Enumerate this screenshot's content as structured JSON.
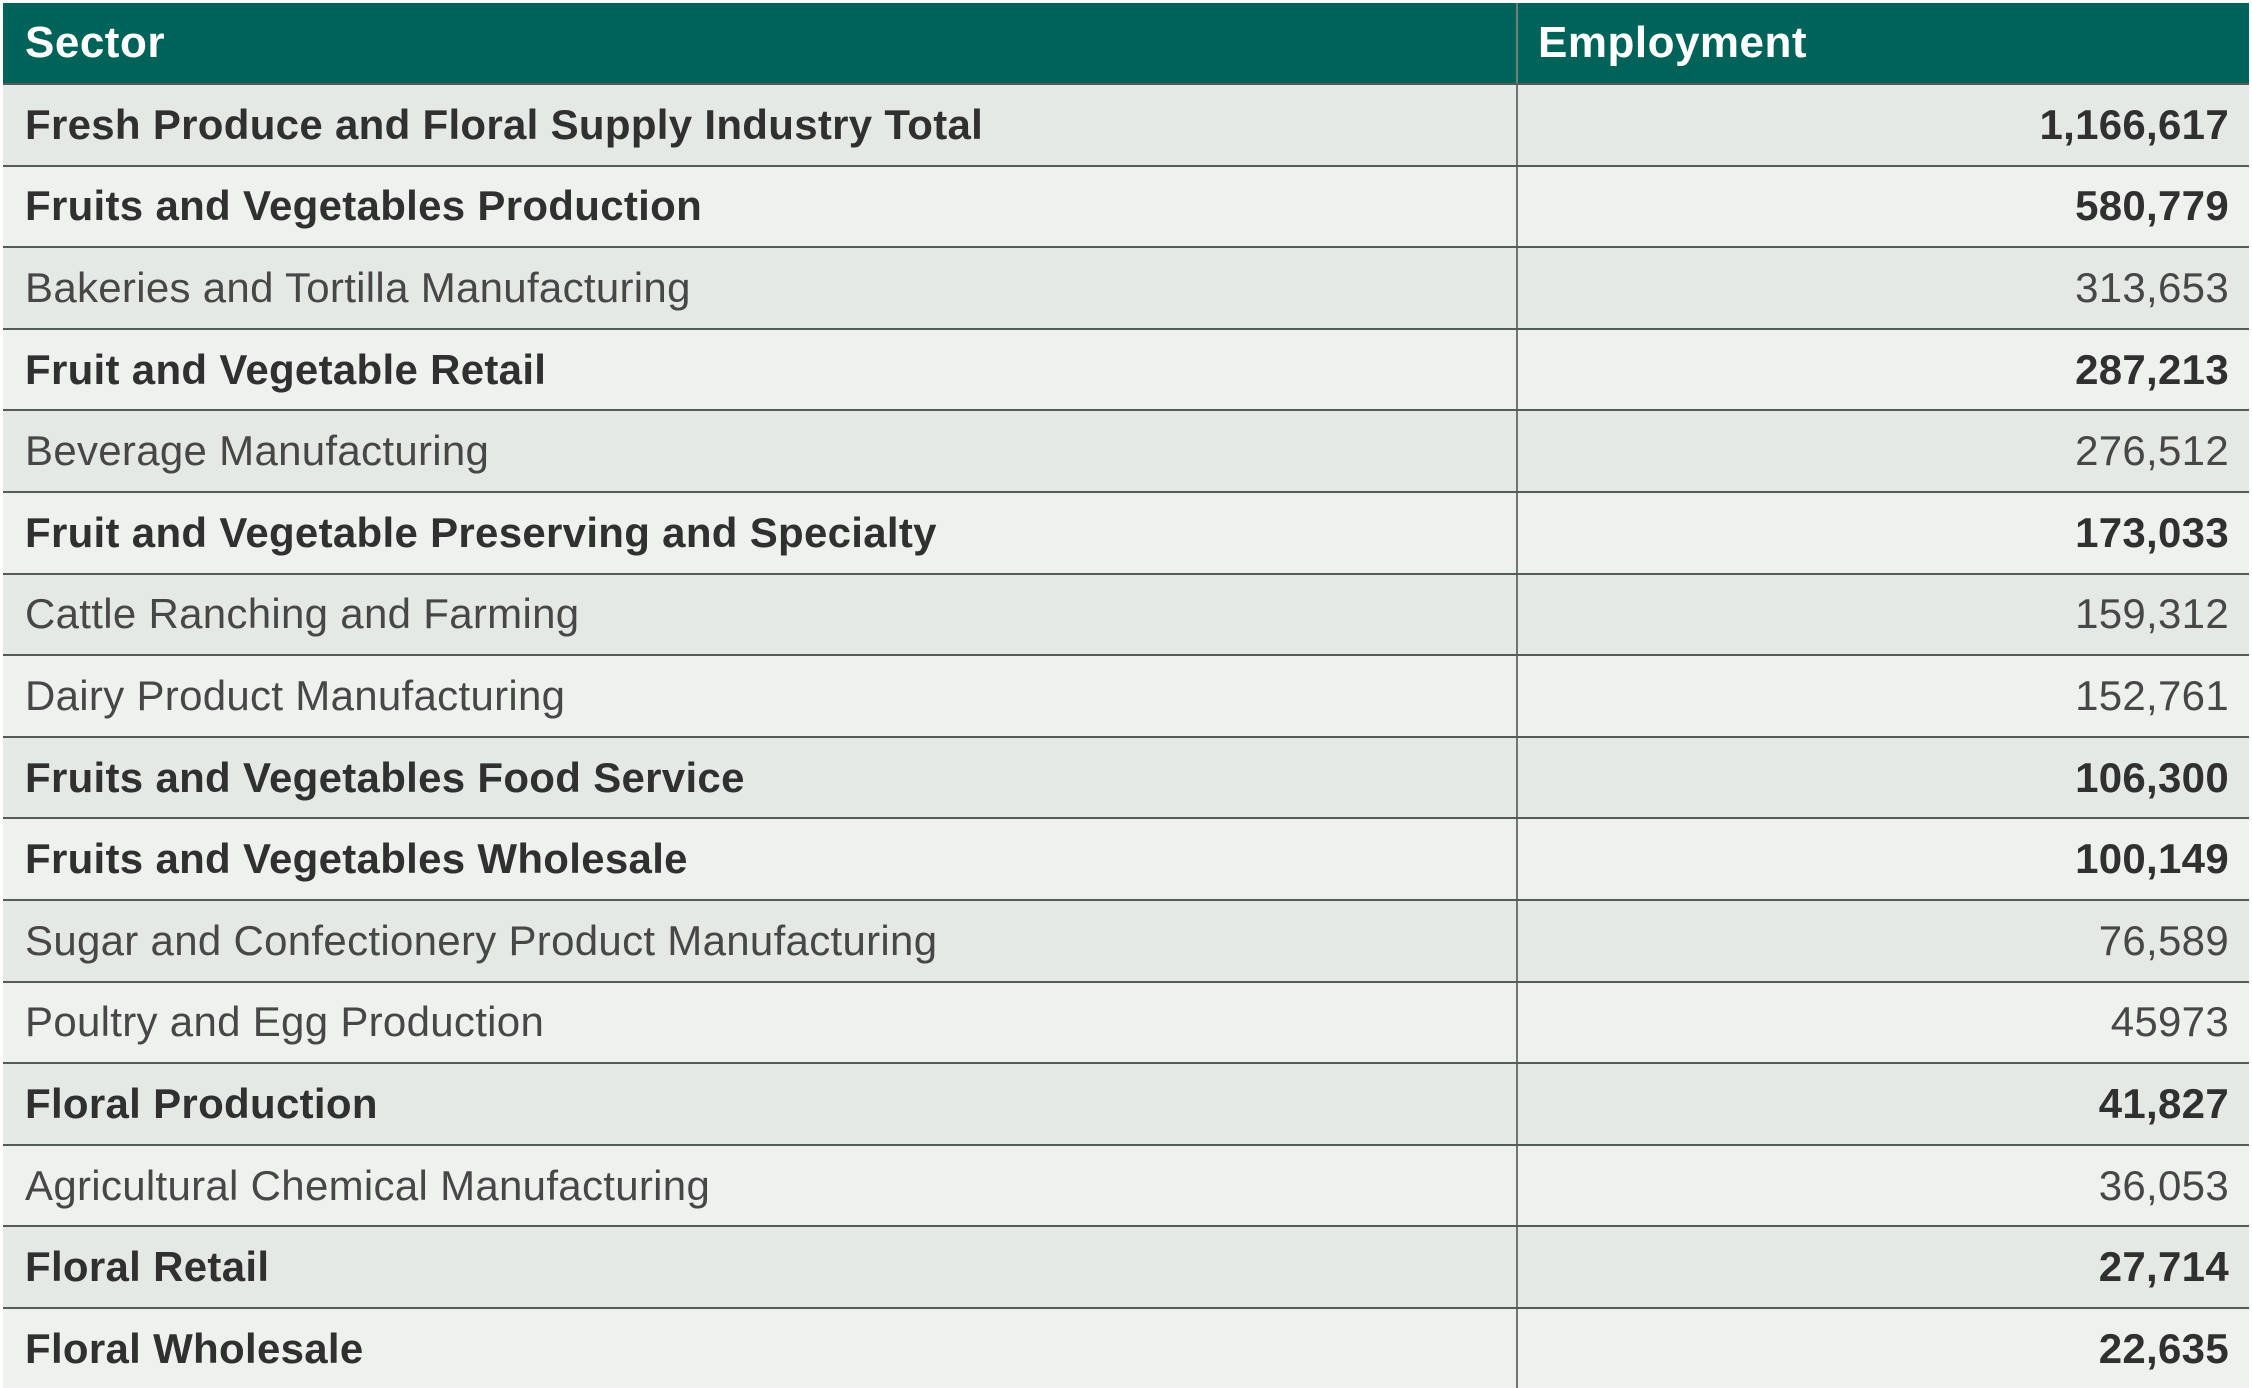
{
  "colors": {
    "header_bg": "#00635a",
    "header_text": "#ffffff",
    "row_odd_bg": "#e4e9e5",
    "row_even_bg": "#eef1ee",
    "h_border": "#545b58",
    "v_divider": "#6f7573",
    "text_regular": "#474747",
    "text_bold": "#303030"
  },
  "table": {
    "columns": [
      {
        "label": "Sector"
      },
      {
        "label": "Employment"
      }
    ],
    "rows": [
      {
        "sector": "Fresh Produce and Floral Supply Industry Total",
        "employment": "1,166,617",
        "bold": true
      },
      {
        "sector": "Fruits and Vegetables Production",
        "employment": "580,779",
        "bold": true
      },
      {
        "sector": "Bakeries and Tortilla Manufacturing",
        "employment": "313,653",
        "bold": false
      },
      {
        "sector": "Fruit and Vegetable Retail",
        "employment": "287,213",
        "bold": true
      },
      {
        "sector": "Beverage Manufacturing",
        "employment": "276,512",
        "bold": false
      },
      {
        "sector": "Fruit and Vegetable Preserving and Specialty",
        "employment": "173,033",
        "bold": true
      },
      {
        "sector": "Cattle Ranching and Farming",
        "employment": "159,312",
        "bold": false
      },
      {
        "sector": "Dairy Product Manufacturing",
        "employment": "152,761",
        "bold": false
      },
      {
        "sector": "Fruits and Vegetables Food Service",
        "employment": "106,300",
        "bold": true
      },
      {
        "sector": "Fruits and Vegetables Wholesale",
        "employment": "100,149",
        "bold": true
      },
      {
        "sector": "Sugar and Confectionery Product Manufacturing",
        "employment": "76,589",
        "bold": false
      },
      {
        "sector": "Poultry and Egg Production",
        "employment": "45973",
        "bold": false
      },
      {
        "sector": "Floral Production",
        "employment": "41,827",
        "bold": true
      },
      {
        "sector": "Agricultural Chemical Manufacturing",
        "employment": "36,053",
        "bold": false
      },
      {
        "sector": "Floral Retail",
        "employment": "27,714",
        "bold": true
      },
      {
        "sector": "Floral Wholesale",
        "employment": "22,635",
        "bold": true
      }
    ]
  },
  "chart_data": {
    "type": "table",
    "title": "",
    "columns": [
      "Sector",
      "Employment"
    ],
    "categories": [
      "Fresh Produce and Floral Supply Industry Total",
      "Fruits and Vegetables Production",
      "Bakeries and Tortilla Manufacturing",
      "Fruit and Vegetable Retail",
      "Beverage Manufacturing",
      "Fruit and Vegetable Preserving and Specialty",
      "Cattle Ranching and Farming",
      "Dairy Product Manufacturing",
      "Fruits and Vegetables Food Service",
      "Fruits and Vegetables Wholesale",
      "Sugar and Confectionery Product Manufacturing",
      "Poultry and Egg Production",
      "Floral Production",
      "Agricultural Chemical Manufacturing",
      "Floral Retail",
      "Floral Wholesale"
    ],
    "values": [
      1166617,
      580779,
      313653,
      287213,
      276512,
      173033,
      159312,
      152761,
      106300,
      100149,
      76589,
      45973,
      41827,
      36053,
      27714,
      22635
    ],
    "emphasized_rows": [
      0,
      1,
      3,
      5,
      8,
      9,
      12,
      14,
      15
    ]
  }
}
